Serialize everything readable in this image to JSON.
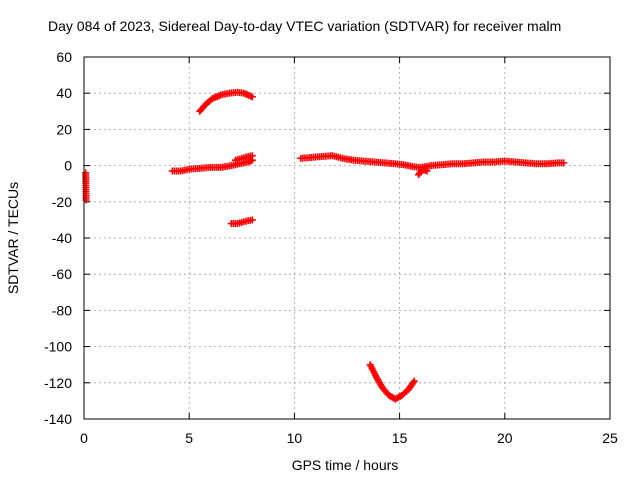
{
  "chart_data": {
    "type": "scatter",
    "title": "Day 084 of 2023, Sidereal Day-to-day VTEC variation (SDTVAR) for receiver malm",
    "xlabel": "GPS time / hours",
    "ylabel": "SDTVAR / TECUs",
    "xlim": [
      0,
      25
    ],
    "ylim": [
      -140,
      60
    ],
    "xticks": [
      0,
      5,
      10,
      15,
      20,
      25
    ],
    "yticks": [
      60,
      40,
      20,
      0,
      -20,
      -40,
      -60,
      -80,
      -100,
      -120,
      -140
    ],
    "xtick_labels": [
      "0",
      "5",
      "10",
      "15",
      "20",
      "25"
    ],
    "ytick_labels": [
      "60",
      "40",
      "20",
      "0",
      "-20",
      "-40",
      "-60",
      "-80",
      "-100",
      "-120",
      "-140"
    ],
    "grid": true,
    "marker": "plus",
    "color": "#ff0000",
    "segments": [
      {
        "name": "early-points",
        "x": [
          0.08,
          0.1
        ],
        "y": [
          -4,
          -19
        ]
      },
      {
        "name": "morning-baseline",
        "x": [
          4.2,
          4.6,
          5.0,
          5.5,
          6.0,
          6.5,
          7.0,
          7.4,
          7.8,
          8.0
        ],
        "y": [
          -3,
          -3,
          -2,
          -1.5,
          -1,
          -1,
          0,
          1,
          2,
          3
        ]
      },
      {
        "name": "upper-arc",
        "x": [
          5.5,
          5.8,
          6.1,
          6.5,
          6.9,
          7.3,
          7.6,
          8.0
        ],
        "y": [
          30,
          34,
          37,
          39,
          40,
          40.5,
          40,
          38
        ]
      },
      {
        "name": "upper-cluster",
        "x": [
          7.2,
          7.5,
          7.8,
          8.0
        ],
        "y": [
          3,
          4,
          5,
          5.5
        ]
      },
      {
        "name": "lower-cluster",
        "x": [
          7.0,
          7.3,
          7.6,
          8.0
        ],
        "y": [
          -32,
          -32,
          -31,
          -30
        ]
      },
      {
        "name": "midday-band",
        "x": [
          10.3,
          10.8,
          11.3,
          11.8,
          12.3,
          12.8,
          13.3,
          13.8,
          14.3,
          14.8,
          15.2,
          15.6,
          15.9
        ],
        "y": [
          4,
          4.5,
          5,
          5.5,
          4,
          3,
          2.5,
          2,
          1.5,
          1,
          0.5,
          -0.5,
          -1
        ]
      },
      {
        "name": "afternoon-band",
        "x": [
          16.0,
          16.5,
          17.0,
          17.5,
          18.0,
          18.5,
          19.0,
          19.5,
          20.0,
          20.5,
          21.0,
          21.5,
          22.0,
          22.5,
          22.8
        ],
        "y": [
          -1,
          0,
          0.5,
          1,
          1,
          1.5,
          2,
          2,
          2.5,
          2,
          1.5,
          1,
          1,
          1.5,
          1.5
        ]
      },
      {
        "name": "afternoon-dip",
        "x": [
          15.9,
          16.1,
          16.3
        ],
        "y": [
          -5,
          -2,
          -3
        ]
      },
      {
        "name": "v-curve",
        "x": [
          13.6,
          13.9,
          14.2,
          14.5,
          14.8,
          15.1,
          15.4,
          15.7
        ],
        "y": [
          -110,
          -117,
          -123,
          -127,
          -129,
          -127,
          -124,
          -119
        ]
      }
    ]
  }
}
